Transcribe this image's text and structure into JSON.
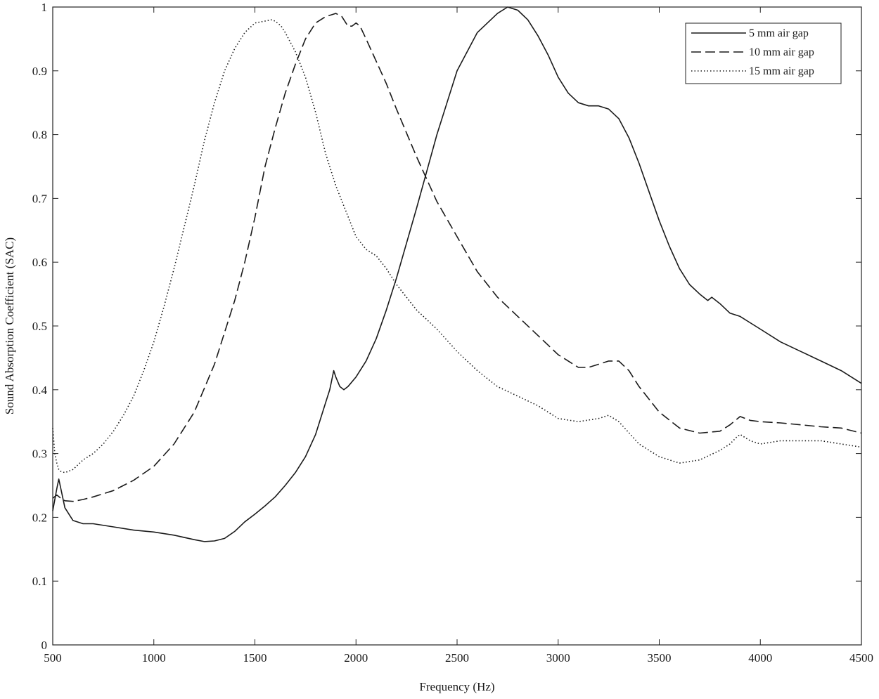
{
  "chart_data": {
    "type": "line",
    "title": "",
    "xlabel": "Frequency (Hz)",
    "ylabel": "Sound Absorption Coefficient (SAC)",
    "xlim": [
      500,
      4500
    ],
    "ylim": [
      0,
      1
    ],
    "xticks": [
      500,
      1000,
      1500,
      2000,
      2500,
      3000,
      3500,
      4000,
      4500
    ],
    "yticks": [
      0,
      0.1,
      0.2,
      0.3,
      0.4,
      0.5,
      0.6,
      0.7,
      0.8,
      0.9,
      1
    ],
    "ytick_labels": [
      "0",
      "0.1",
      "0.2",
      "0.3",
      "0.4",
      "0.5",
      "0.6",
      "0.7",
      "0.8",
      "0.9",
      "1"
    ],
    "grid": false,
    "legend_position": "top-right",
    "series": [
      {
        "name": "5 mm air gap",
        "style": "solid",
        "color": "#1a1a1a",
        "x": [
          500,
          520,
          530,
          540,
          560,
          600,
          650,
          700,
          800,
          900,
          1000,
          1100,
          1200,
          1250,
          1300,
          1350,
          1400,
          1450,
          1500,
          1550,
          1600,
          1650,
          1700,
          1750,
          1800,
          1850,
          1870,
          1890,
          1900,
          1920,
          1940,
          1960,
          2000,
          2050,
          2100,
          2150,
          2200,
          2300,
          2400,
          2500,
          2600,
          2700,
          2750,
          2800,
          2850,
          2900,
          2950,
          3000,
          3050,
          3100,
          3150,
          3200,
          3250,
          3300,
          3350,
          3400,
          3450,
          3500,
          3550,
          3600,
          3650,
          3700,
          3740,
          3760,
          3800,
          3850,
          3900,
          3950,
          4000,
          4100,
          4200,
          4300,
          4400,
          4500
        ],
        "y": [
          0.21,
          0.245,
          0.26,
          0.245,
          0.215,
          0.195,
          0.19,
          0.19,
          0.185,
          0.18,
          0.177,
          0.172,
          0.165,
          0.162,
          0.163,
          0.167,
          0.178,
          0.193,
          0.205,
          0.218,
          0.232,
          0.25,
          0.27,
          0.295,
          0.33,
          0.38,
          0.4,
          0.43,
          0.42,
          0.405,
          0.4,
          0.405,
          0.42,
          0.445,
          0.48,
          0.525,
          0.575,
          0.685,
          0.8,
          0.9,
          0.96,
          0.99,
          1.0,
          0.995,
          0.98,
          0.955,
          0.925,
          0.89,
          0.865,
          0.85,
          0.845,
          0.845,
          0.84,
          0.825,
          0.795,
          0.755,
          0.71,
          0.665,
          0.625,
          0.59,
          0.565,
          0.55,
          0.54,
          0.545,
          0.535,
          0.52,
          0.515,
          0.505,
          0.495,
          0.475,
          0.46,
          0.445,
          0.43,
          0.41
        ]
      },
      {
        "name": "10 mm air gap",
        "style": "dashed",
        "color": "#1a1a1a",
        "x": [
          500,
          520,
          540,
          560,
          600,
          650,
          700,
          800,
          900,
          1000,
          1100,
          1200,
          1300,
          1400,
          1450,
          1500,
          1550,
          1600,
          1650,
          1700,
          1750,
          1800,
          1850,
          1900,
          1930,
          1960,
          1980,
          2000,
          2020,
          2050,
          2100,
          2150,
          2200,
          2300,
          2400,
          2500,
          2600,
          2700,
          2800,
          2900,
          3000,
          3050,
          3100,
          3150,
          3200,
          3250,
          3300,
          3350,
          3400,
          3500,
          3600,
          3700,
          3800,
          3850,
          3900,
          3950,
          4000,
          4100,
          4200,
          4300,
          4400,
          4500
        ],
        "y": [
          0.23,
          0.235,
          0.23,
          0.226,
          0.225,
          0.228,
          0.232,
          0.242,
          0.258,
          0.28,
          0.315,
          0.365,
          0.44,
          0.54,
          0.6,
          0.67,
          0.75,
          0.81,
          0.865,
          0.91,
          0.95,
          0.975,
          0.985,
          0.99,
          0.985,
          0.97,
          0.97,
          0.975,
          0.97,
          0.95,
          0.915,
          0.88,
          0.84,
          0.765,
          0.695,
          0.64,
          0.585,
          0.545,
          0.515,
          0.485,
          0.455,
          0.445,
          0.435,
          0.435,
          0.44,
          0.445,
          0.445,
          0.43,
          0.405,
          0.365,
          0.34,
          0.332,
          0.335,
          0.345,
          0.358,
          0.352,
          0.35,
          0.348,
          0.345,
          0.342,
          0.34,
          0.332
        ]
      },
      {
        "name": "15 mm air gap",
        "style": "dotted",
        "color": "#1a1a1a",
        "x": [
          500,
          510,
          520,
          530,
          540,
          560,
          600,
          650,
          700,
          750,
          800,
          850,
          900,
          950,
          1000,
          1050,
          1100,
          1150,
          1200,
          1250,
          1300,
          1350,
          1400,
          1450,
          1500,
          1550,
          1580,
          1600,
          1630,
          1650,
          1700,
          1750,
          1800,
          1850,
          1900,
          1950,
          2000,
          2050,
          2100,
          2150,
          2200,
          2250,
          2300,
          2400,
          2500,
          2600,
          2700,
          2800,
          2900,
          3000,
          3100,
          3200,
          3250,
          3300,
          3400,
          3500,
          3600,
          3700,
          3800,
          3850,
          3880,
          3900,
          3950,
          4000,
          4100,
          4200,
          4300,
          4400,
          4500
        ],
        "y": [
          0.34,
          0.3,
          0.285,
          0.275,
          0.272,
          0.27,
          0.275,
          0.29,
          0.3,
          0.315,
          0.335,
          0.36,
          0.39,
          0.43,
          0.475,
          0.53,
          0.59,
          0.655,
          0.72,
          0.79,
          0.85,
          0.9,
          0.935,
          0.96,
          0.975,
          0.978,
          0.98,
          0.978,
          0.97,
          0.96,
          0.93,
          0.89,
          0.835,
          0.77,
          0.72,
          0.68,
          0.64,
          0.62,
          0.61,
          0.59,
          0.565,
          0.545,
          0.525,
          0.495,
          0.46,
          0.43,
          0.405,
          0.39,
          0.375,
          0.355,
          0.35,
          0.355,
          0.36,
          0.35,
          0.315,
          0.295,
          0.285,
          0.29,
          0.305,
          0.315,
          0.325,
          0.33,
          0.32,
          0.315,
          0.32,
          0.32,
          0.32,
          0.315,
          0.31
        ]
      }
    ]
  }
}
